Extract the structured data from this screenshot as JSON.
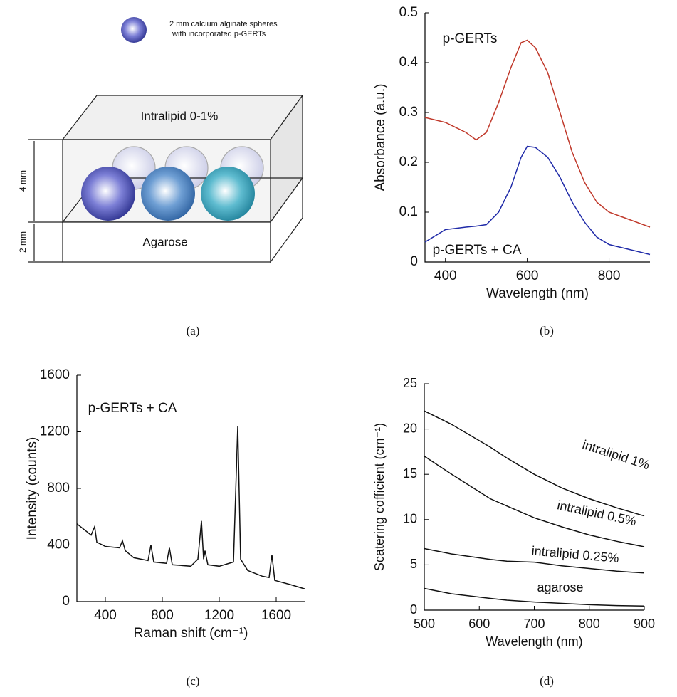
{
  "diagram": {
    "sphere_note": [
      "2 mm calcium alginate spheres",
      "with incorporated p-GERTs"
    ],
    "top_layer": "Intralipid 0-1%",
    "bottom_layer": "Agarose",
    "dim_top": "4 mm",
    "dim_bottom": "2 mm",
    "panel_label": "(a)"
  },
  "chart_data": [
    {
      "type": "line",
      "panel_label": "(b)",
      "xlabel": "Wavelength (nm)",
      "ylabel": "Absorbance (a.u.)",
      "x": [
        350,
        400,
        450,
        475,
        500,
        530,
        560,
        585,
        600,
        620,
        650,
        680,
        710,
        740,
        770,
        800,
        850,
        900
      ],
      "series": [
        {
          "name": "p-GERTs",
          "color": "#c0392b",
          "values": [
            0.29,
            0.28,
            0.26,
            0.245,
            0.26,
            0.32,
            0.39,
            0.44,
            0.445,
            0.43,
            0.38,
            0.3,
            0.22,
            0.16,
            0.12,
            0.1,
            0.085,
            0.07
          ]
        },
        {
          "name": "p-GERTs + CA",
          "color": "#1f2aa8",
          "values": [
            0.04,
            0.065,
            0.07,
            0.072,
            0.075,
            0.1,
            0.15,
            0.21,
            0.232,
            0.23,
            0.21,
            0.17,
            0.12,
            0.08,
            0.05,
            0.035,
            0.025,
            0.015
          ]
        }
      ],
      "xlim": [
        350,
        900
      ],
      "ylim": [
        0,
        0.5
      ],
      "xticks": [
        400,
        600,
        800
      ],
      "yticks": [
        0,
        0.1,
        0.2,
        0.3,
        0.4,
        0.5
      ]
    },
    {
      "type": "line",
      "panel_label": "(c)",
      "xlabel": "Raman shift (cm⁻¹)",
      "ylabel": "Intensity (counts)",
      "annotation": "p-GERTs + CA",
      "x": [
        200,
        300,
        325,
        340,
        400,
        500,
        520,
        540,
        600,
        700,
        720,
        740,
        830,
        850,
        870,
        1000,
        1050,
        1075,
        1090,
        1100,
        1120,
        1200,
        1300,
        1330,
        1350,
        1400,
        1500,
        1550,
        1570,
        1590,
        1700,
        1800
      ],
      "series": [
        {
          "color": "#111111",
          "values": [
            550,
            470,
            530,
            420,
            390,
            380,
            430,
            360,
            310,
            290,
            400,
            280,
            270,
            380,
            260,
            250,
            300,
            570,
            300,
            360,
            260,
            250,
            280,
            1240,
            300,
            220,
            180,
            170,
            330,
            150,
            120,
            90
          ]
        }
      ],
      "xlim": [
        200,
        1800
      ],
      "ylim": [
        0,
        1600
      ],
      "xticks": [
        400,
        800,
        1200,
        1600
      ],
      "yticks": [
        0,
        400,
        800,
        1200,
        1600
      ]
    },
    {
      "type": "line",
      "panel_label": "(d)",
      "xlabel": "Wavelength (nm)",
      "ylabel": "Scatering cofficient (cm⁻¹)",
      "x": [
        500,
        550,
        620,
        650,
        700,
        750,
        800,
        850,
        900
      ],
      "series": [
        {
          "name": "intralipid 1%",
          "color": "#111111",
          "values": [
            22,
            20.5,
            18,
            16.8,
            15,
            13.5,
            12.3,
            11.3,
            10.4
          ]
        },
        {
          "name": "intralipid 0.5%",
          "color": "#111111",
          "values": [
            17,
            15,
            12.3,
            11.5,
            10.2,
            9.2,
            8.3,
            7.6,
            7
          ]
        },
        {
          "name": "intralipid 0.25%",
          "color": "#111111",
          "values": [
            6.8,
            6.2,
            5.6,
            5.4,
            5.3,
            4.9,
            4.6,
            4.3,
            4.1
          ]
        },
        {
          "name": "agarose",
          "color": "#111111",
          "values": [
            2.4,
            1.8,
            1.3,
            1.1,
            0.9,
            0.75,
            0.6,
            0.5,
            0.45
          ]
        }
      ],
      "xlim": [
        500,
        900
      ],
      "ylim": [
        0,
        25
      ],
      "xticks": [
        500,
        600,
        700,
        800,
        900
      ],
      "yticks": [
        0,
        5,
        10,
        15,
        20,
        25
      ]
    }
  ]
}
